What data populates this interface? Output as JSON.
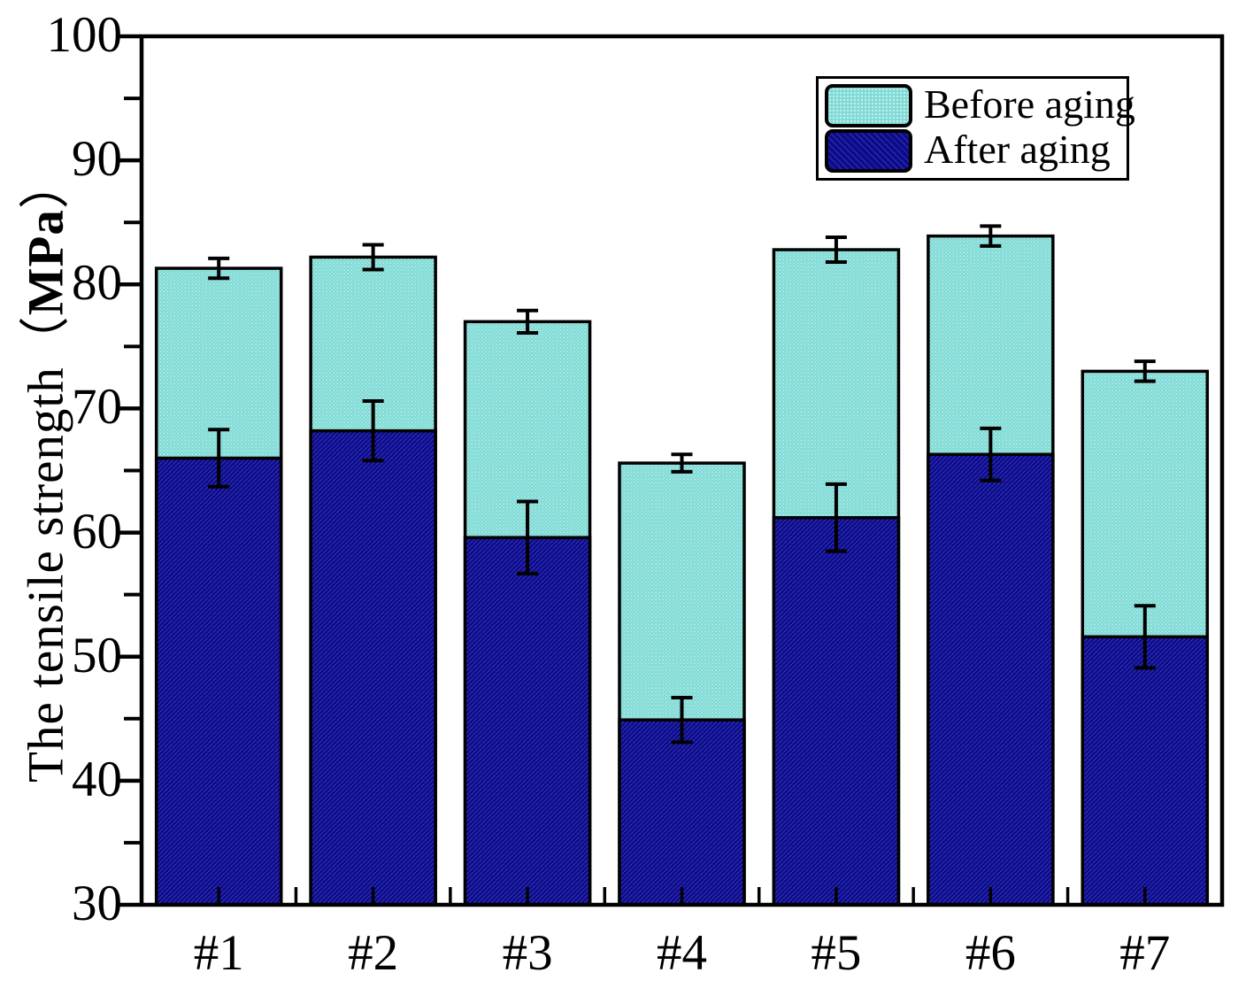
{
  "chart_data": {
    "type": "bar",
    "overlay": true,
    "title": "",
    "xlabel": "",
    "ylabel": "The tensile strength（MPa）",
    "ylabel_parts": {
      "prefix": "The tensile strength",
      "open_paren": "（",
      "unit": "MPa",
      "close_paren": "）"
    },
    "categories": [
      "#1",
      "#2",
      "#3",
      "#4",
      "#5",
      "#6",
      "#7"
    ],
    "ylim": [
      30,
      100
    ],
    "yticks_major": [
      30,
      40,
      50,
      60,
      70,
      80,
      90,
      100
    ],
    "yticks_minor": [
      35,
      45,
      55,
      65,
      75,
      85,
      95
    ],
    "grid": false,
    "legend": {
      "position": "top-right"
    },
    "series": [
      {
        "name": "Before aging",
        "color": "#7edad5",
        "texture": "fine-dot",
        "values": [
          81.3,
          82.2,
          77.0,
          65.6,
          82.8,
          83.9,
          73.0
        ],
        "errors": [
          0.8,
          1.0,
          0.9,
          0.7,
          1.0,
          0.8,
          0.8
        ]
      },
      {
        "name": "After aging",
        "color": "#0b0b8c",
        "texture": "fine-diagonal",
        "values": [
          66.0,
          68.2,
          59.6,
          44.9,
          61.2,
          66.3,
          51.6
        ],
        "errors": [
          2.3,
          2.4,
          2.9,
          1.8,
          2.7,
          2.1,
          2.5
        ]
      }
    ],
    "axis_color": "#000000",
    "background_color": "#ffffff"
  }
}
